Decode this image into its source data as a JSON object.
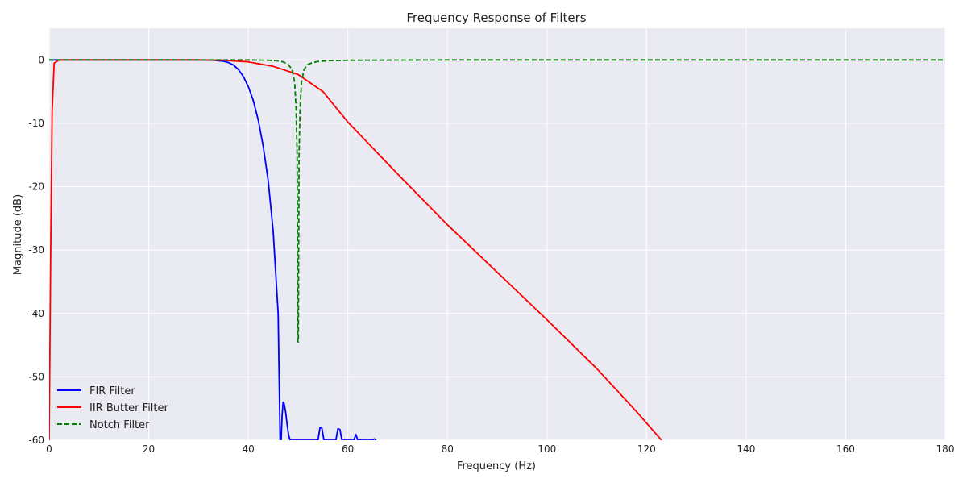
{
  "chart_data": {
    "type": "line",
    "title": "Frequency Response of Filters",
    "xlabel": "Frequency (Hz)",
    "ylabel": "Magnitude (dB)",
    "xlim": [
      0,
      180
    ],
    "ylim": [
      -60,
      5
    ],
    "xticks": [
      0,
      20,
      40,
      60,
      80,
      100,
      120,
      140,
      160,
      180
    ],
    "yticks": [
      0,
      -10,
      -20,
      -30,
      -40,
      -50,
      -60
    ],
    "grid": true,
    "legend_position": "lower-left",
    "series": [
      {
        "name": "FIR Filter",
        "color": "#0000ff",
        "style": "solid",
        "x": [
          0,
          10,
          20,
          30,
          33,
          35,
          36,
          37,
          38,
          39,
          40,
          41,
          42,
          43,
          44,
          45,
          46,
          46.4,
          46.6,
          46.8,
          47,
          47.2,
          47.5,
          47.8,
          48.1,
          48.4,
          48.8,
          49.1,
          54,
          54.4,
          54.8,
          55.2,
          57.6,
          58,
          58.4,
          58.8,
          61.2,
          61.6,
          62,
          64.8,
          65.3,
          65.7
        ],
        "y": [
          0,
          0,
          0,
          0,
          -0.05,
          -0.2,
          -0.4,
          -0.8,
          -1.5,
          -2.6,
          -4.2,
          -6.4,
          -9.5,
          -13.6,
          -19,
          -27,
          -40,
          -60,
          -60,
          -56,
          -54,
          -54.2,
          -55.5,
          -57.5,
          -59.2,
          -60,
          -60,
          -60,
          -60,
          -58,
          -58.1,
          -60,
          -60,
          -58.2,
          -58.3,
          -60,
          -60,
          -59.1,
          -60,
          -60,
          -59.8,
          -60
        ]
      },
      {
        "name": "IIR Butter Filter",
        "color": "#ff0000",
        "style": "solid",
        "x": [
          0,
          0.3,
          0.6,
          1,
          2,
          10,
          20,
          30,
          35,
          40,
          45,
          50,
          55,
          60,
          70,
          80,
          90,
          100,
          110,
          118,
          123
        ],
        "y": [
          -60,
          -30,
          -8,
          -0.5,
          0,
          0,
          0,
          0,
          -0.05,
          -0.3,
          -1,
          -2.3,
          -5,
          -9.8,
          -18,
          -26,
          -33.5,
          -41,
          -48.7,
          -55.5,
          -60
        ]
      },
      {
        "name": "Notch Filter",
        "color": "#008000",
        "style": "dashed",
        "x": [
          0,
          40,
          44,
          46,
          47,
          48,
          48.8,
          49.3,
          49.6,
          49.8,
          49.95,
          50.05,
          50.2,
          50.4,
          50.7,
          51.2,
          52,
          53,
          54,
          56,
          60,
          80,
          120,
          180
        ],
        "y": [
          0,
          0,
          -0.05,
          -0.15,
          -0.3,
          -0.7,
          -1.5,
          -3.5,
          -7.5,
          -15,
          -44.5,
          -44.5,
          -15,
          -7.5,
          -3.5,
          -1.5,
          -0.7,
          -0.4,
          -0.25,
          -0.12,
          -0.05,
          0,
          0,
          0
        ]
      }
    ]
  }
}
